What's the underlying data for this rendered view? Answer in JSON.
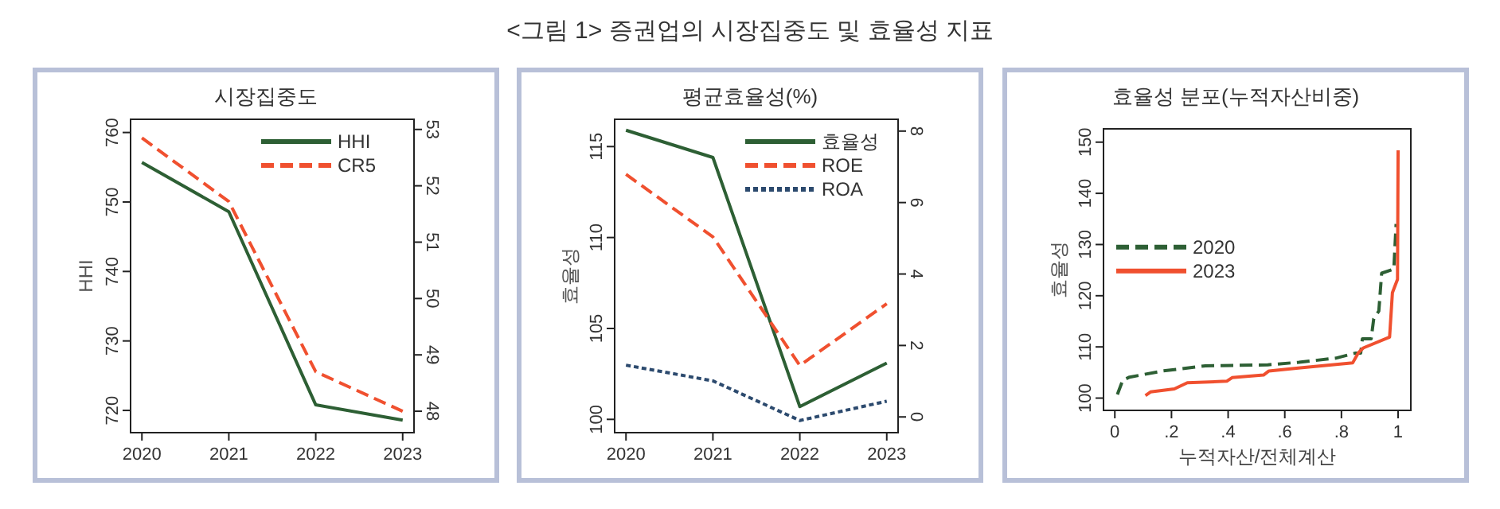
{
  "chart_data": [
    {
      "type": "other",
      "title": "<그림 1> 증권업의 시장집중도 및 효율성 지표"
    },
    {
      "type": "line",
      "title": "시장집중도",
      "ylabel": "HHI",
      "categories": [
        "2020",
        "2021",
        "2022",
        "2023"
      ],
      "series": [
        {
          "name": "HHI",
          "color": "#2d5f34",
          "values": [
            755.7,
            748.6,
            720.8,
            718.6
          ],
          "line_style": "solid"
        },
        {
          "name": "CR5",
          "color": "#f0502f",
          "values": [
            52.85,
            51.72,
            48.7,
            48.0
          ],
          "axis": "y2",
          "line_style": "dashed"
        }
      ],
      "ylim": [
        716.8,
        761.9
      ],
      "yticks": [
        720,
        730,
        740,
        750,
        760
      ],
      "y2lim": [
        47.62,
        53.18
      ],
      "y2ticks": [
        48,
        49,
        50,
        51,
        52,
        53
      ],
      "legend": "top right"
    },
    {
      "type": "line",
      "title": "평균효율성(%)",
      "ylabel": "효율성",
      "categories": [
        "2020",
        "2021",
        "2022",
        "2023"
      ],
      "series": [
        {
          "name": "효율성",
          "color": "#2d5f34",
          "values": [
            115.9,
            114.4,
            100.7,
            103.1
          ],
          "line_style": "solid"
        },
        {
          "name": "ROE",
          "color": "#f0502f",
          "values": [
            6.79,
            5.04,
            1.44,
            3.17
          ],
          "axis": "y2",
          "line_style": "dashed"
        },
        {
          "name": "ROA",
          "color": "#2c4a6e",
          "values": [
            1.45,
            1.01,
            -0.1,
            0.44
          ],
          "axis": "y2",
          "line_style": "dotted"
        }
      ],
      "ylim": [
        99.27,
        116.5
      ],
      "yticks": [
        100,
        105,
        110,
        115
      ],
      "y2lim": [
        -0.44,
        8.33
      ],
      "y2ticks": [
        0,
        2,
        4,
        6,
        8
      ],
      "legend": "top right"
    },
    {
      "type": "line",
      "title": "효율성 분포(누적자산비중)",
      "xlabel": "누적자산/전체계산",
      "ylabel": "효율성",
      "series": [
        {
          "name": "2020",
          "color": "#2d5f34",
          "line_style": "dashed",
          "x": [
            0.009,
            0.028,
            0.052,
            0.17,
            0.32,
            0.54,
            0.65,
            0.78,
            0.85,
            0.868,
            0.874,
            0.905,
            0.914,
            0.932,
            0.942,
            0.985,
            0.993
          ],
          "values": [
            100.7,
            103.5,
            104.1,
            105.3,
            106.3,
            106.5,
            107.0,
            107.8,
            108.8,
            108.8,
            111.6,
            111.6,
            115.5,
            117.0,
            124.4,
            125.2,
            134.0
          ]
        },
        {
          "name": "2023",
          "color": "#f0502f",
          "line_style": "solid",
          "x": [
            0.108,
            0.126,
            0.21,
            0.256,
            0.395,
            0.414,
            0.525,
            0.544,
            0.655,
            0.84,
            0.859,
            0.877,
            0.97,
            0.98,
            0.998,
            1.0
          ],
          "values": [
            100.5,
            101.2,
            101.8,
            103.0,
            103.3,
            104.0,
            104.5,
            105.3,
            105.9,
            106.9,
            108.8,
            109.8,
            111.9,
            120.6,
            123.2,
            148.4
          ]
        }
      ],
      "xlim": [
        -0.04,
        1.045
      ],
      "xticks": [
        0,
        {
          "value": 0.2,
          "label": ".2"
        },
        {
          "value": 0.4,
          "label": ".4"
        },
        {
          "value": 0.6,
          "label": ".6"
        },
        {
          "value": 0.8,
          "label": ".8"
        },
        1
      ],
      "ylim": [
        97.6,
        152.6
      ],
      "yticks": [
        100,
        110,
        120,
        130,
        140,
        150
      ],
      "legend": "left"
    }
  ]
}
